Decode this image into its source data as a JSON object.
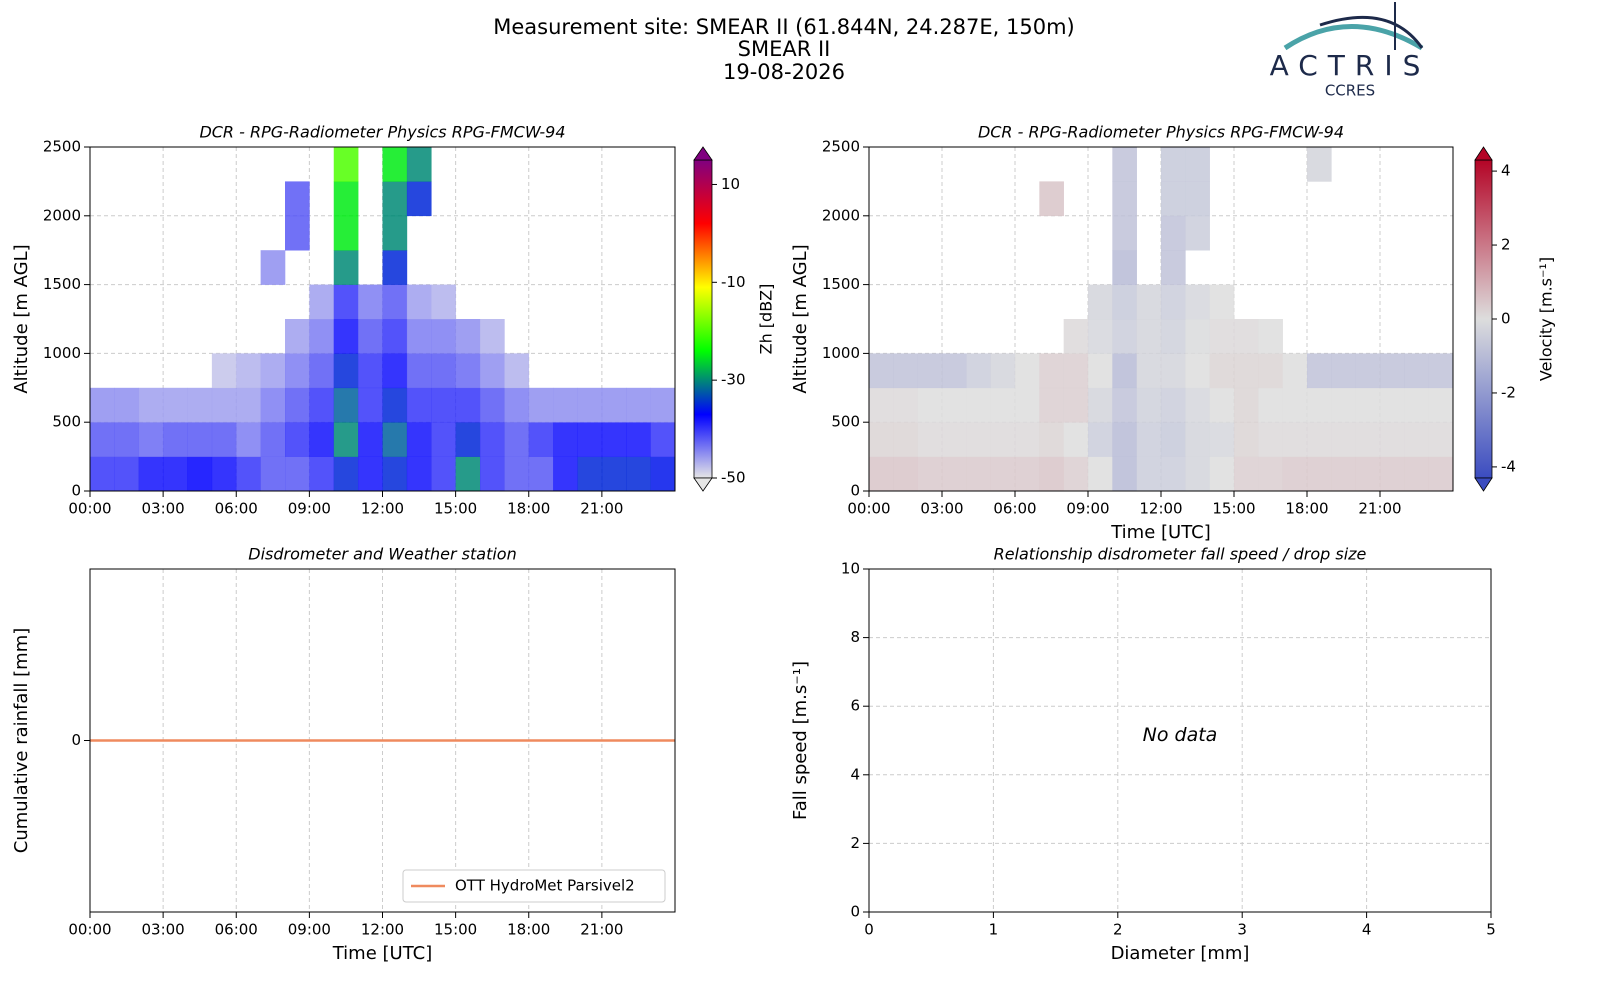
{
  "header": {
    "lines": [
      "Measurement site: SMEAR II (61.844N, 24.287E, 150m)",
      "SMEAR II",
      "19-08-2026"
    ]
  },
  "logo": {
    "name": "ACTRIS",
    "subtitle": "CCRES"
  },
  "chart_data": [
    {
      "type": "heatmap",
      "title": "DCR - RPG-Radiometer Physics RPG-FMCW-94",
      "ylabel": "Altitude [m AGL]",
      "xbins": [
        0,
        1,
        2,
        3,
        4,
        5,
        6,
        7,
        8,
        9,
        10,
        11,
        12,
        13,
        14,
        15,
        16,
        17,
        18,
        19,
        20,
        21,
        22,
        23,
        24
      ],
      "ybins": [
        0,
        250,
        500,
        750,
        1000,
        1250,
        1500,
        1750,
        2000,
        2250,
        2500
      ],
      "z": [
        [
          -40,
          -40,
          -38,
          -38,
          -37,
          -38,
          -40,
          -42,
          -42,
          -40,
          -35,
          -38,
          -35,
          -38,
          -40,
          -30,
          -40,
          -42,
          -42,
          -38,
          -35,
          -35,
          -35,
          -36
        ],
        [
          -42,
          -42,
          -43,
          -42,
          -42,
          -42,
          -44,
          -42,
          -40,
          -38,
          -30,
          -38,
          -32,
          -38,
          -40,
          -35,
          -40,
          -42,
          -40,
          -38,
          -38,
          -38,
          -38,
          -40
        ],
        [
          -45,
          -45,
          -46,
          -46,
          -46,
          -46,
          -46,
          -44,
          -42,
          -40,
          -32,
          -40,
          -35,
          -40,
          -40,
          -40,
          -42,
          -44,
          -45,
          -45,
          -45,
          -45,
          -45,
          -45
        ],
        [
          null,
          null,
          null,
          null,
          null,
          -48,
          -47,
          -46,
          -44,
          -42,
          -35,
          -40,
          -38,
          -42,
          -42,
          -43,
          -45,
          -47,
          null,
          null,
          null,
          null,
          null,
          null
        ],
        [
          null,
          null,
          null,
          null,
          null,
          null,
          null,
          null,
          -46,
          -44,
          -38,
          -42,
          -40,
          -44,
          -44,
          -45,
          -47,
          null,
          null,
          null,
          null,
          null,
          null,
          null
        ],
        [
          null,
          null,
          null,
          null,
          null,
          null,
          null,
          null,
          null,
          -46,
          -40,
          -44,
          -42,
          -46,
          -47,
          null,
          null,
          null,
          null,
          null,
          null,
          null,
          null,
          null
        ],
        [
          null,
          null,
          null,
          null,
          null,
          null,
          null,
          -45,
          null,
          null,
          -30,
          null,
          -35,
          null,
          null,
          null,
          null,
          null,
          null,
          null,
          null,
          null,
          null,
          null
        ],
        [
          null,
          null,
          null,
          null,
          null,
          null,
          null,
          null,
          -42,
          null,
          -25,
          null,
          -30,
          null,
          null,
          null,
          null,
          null,
          null,
          null,
          null,
          null,
          null,
          null
        ],
        [
          null,
          null,
          null,
          null,
          null,
          null,
          null,
          null,
          -42,
          null,
          -25,
          null,
          -30,
          -35,
          null,
          null,
          null,
          null,
          null,
          null,
          null,
          null,
          null,
          null
        ],
        [
          null,
          null,
          null,
          null,
          null,
          null,
          null,
          null,
          null,
          null,
          -20,
          null,
          -25,
          -30,
          null,
          null,
          null,
          null,
          null,
          null,
          null,
          null,
          null,
          null
        ]
      ],
      "xlim": [
        0,
        24
      ],
      "xticks": [
        {
          "value": 0,
          "label": "00:00"
        },
        {
          "value": 3,
          "label": "03:00"
        },
        {
          "value": 6,
          "label": "06:00"
        },
        {
          "value": 9,
          "label": "09:00"
        },
        {
          "value": 12,
          "label": "12:00"
        },
        {
          "value": 15,
          "label": "15:00"
        },
        {
          "value": 18,
          "label": "18:00"
        },
        {
          "value": 21,
          "label": "21:00"
        }
      ],
      "ylim": [
        0,
        2500
      ],
      "yticks": [
        0,
        500,
        1000,
        1500,
        2000,
        2500
      ],
      "grid": true,
      "colorbar": {
        "label": "Zh [dBZ]",
        "lim": [
          -50,
          15
        ],
        "ticks": [
          -50,
          -30,
          -10,
          10
        ],
        "colormap": [
          "#e6e6e6",
          "#0000ff",
          "#00ff00",
          "#ffff00",
          "#ff0000",
          "#800080"
        ]
      }
    },
    {
      "type": "heatmap",
      "title": "DCR - RPG-Radiometer Physics RPG-FMCW-94",
      "ylabel": "Altitude [m AGL]",
      "xlabel": "Time [UTC]",
      "xbins": [
        0,
        1,
        2,
        3,
        4,
        5,
        6,
        7,
        8,
        9,
        10,
        11,
        12,
        13,
        14,
        15,
        16,
        17,
        18,
        19,
        20,
        21,
        22,
        23,
        24
      ],
      "ybins": [
        0,
        250,
        500,
        750,
        1000,
        1250,
        1500,
        1750,
        2000,
        2250,
        2500
      ],
      "z": [
        [
          0.5,
          0.5,
          0.4,
          0.4,
          0.4,
          0.4,
          0.4,
          0.5,
          0.3,
          0,
          -1,
          -0.5,
          -0.5,
          -0.3,
          0,
          0.3,
          0.3,
          0.4,
          0.4,
          0.4,
          0.4,
          0.4,
          0.4,
          0.4
        ],
        [
          0.2,
          0.2,
          0.1,
          0.1,
          0.1,
          0.1,
          0.1,
          0.2,
          0,
          -0.5,
          -1,
          -0.5,
          -0.6,
          -0.3,
          -0.2,
          0.2,
          0.1,
          0.1,
          0.1,
          0.1,
          0.1,
          0.1,
          0.1,
          0.1
        ],
        [
          0.1,
          0.1,
          0,
          0,
          0,
          0,
          0,
          0.3,
          0.3,
          -0.3,
          -0.8,
          -0.4,
          -0.5,
          -0.2,
          0,
          0.2,
          0,
          0,
          0,
          0,
          0,
          0,
          0,
          0
        ],
        [
          -0.8,
          -0.8,
          -0.8,
          -0.8,
          -0.5,
          -0.3,
          0,
          0.3,
          0.3,
          0,
          -1,
          -0.3,
          -0.3,
          0,
          0.2,
          0.2,
          0.2,
          0,
          -0.8,
          -0.8,
          -0.8,
          -0.8,
          -0.8,
          -0.8
        ],
        [
          null,
          null,
          null,
          null,
          null,
          null,
          null,
          null,
          0.1,
          -0.2,
          -0.5,
          -0.3,
          -0.4,
          -0.1,
          0.1,
          0.1,
          0,
          null,
          null,
          null,
          null,
          null,
          null,
          null
        ],
        [
          null,
          null,
          null,
          null,
          null,
          null,
          null,
          null,
          null,
          -0.3,
          -0.6,
          -0.3,
          -0.5,
          -0.2,
          0,
          null,
          null,
          null,
          null,
          null,
          null,
          null,
          null,
          null
        ],
        [
          null,
          null,
          null,
          null,
          null,
          null,
          null,
          null,
          null,
          null,
          -1,
          null,
          -0.8,
          null,
          null,
          null,
          null,
          null,
          null,
          null,
          null,
          null,
          null,
          null
        ],
        [
          null,
          null,
          null,
          null,
          null,
          null,
          null,
          null,
          null,
          null,
          -0.8,
          null,
          -0.8,
          -0.5,
          null,
          null,
          null,
          null,
          null,
          null,
          null,
          null,
          null,
          null
        ],
        [
          null,
          null,
          null,
          null,
          null,
          null,
          null,
          0.5,
          null,
          null,
          -0.8,
          null,
          -0.6,
          -0.6,
          null,
          null,
          null,
          null,
          null,
          null,
          null,
          null,
          null,
          null
        ],
        [
          null,
          null,
          null,
          null,
          null,
          null,
          null,
          null,
          null,
          null,
          -0.8,
          null,
          -0.6,
          -0.6,
          null,
          null,
          null,
          null,
          -0.3,
          null,
          null,
          null,
          null,
          null
        ]
      ],
      "xlim": [
        0,
        24
      ],
      "xticks": [
        {
          "value": 0,
          "label": "00:00"
        },
        {
          "value": 3,
          "label": "03:00"
        },
        {
          "value": 6,
          "label": "06:00"
        },
        {
          "value": 9,
          "label": "09:00"
        },
        {
          "value": 12,
          "label": "12:00"
        },
        {
          "value": 15,
          "label": "15:00"
        },
        {
          "value": 18,
          "label": "18:00"
        },
        {
          "value": 21,
          "label": "21:00"
        }
      ],
      "ylim": [
        0,
        2500
      ],
      "yticks": [
        0,
        500,
        1000,
        1500,
        2000,
        2500
      ],
      "grid": true,
      "colorbar": {
        "label": "Velocity [m.s⁻¹]",
        "lim": [
          -4.3,
          4.3
        ],
        "ticks": [
          -4,
          -2,
          0,
          2,
          4
        ],
        "colormap": [
          "#3b4cc0",
          "#dddddd",
          "#b40426"
        ]
      }
    },
    {
      "type": "line",
      "title": "Disdrometer and Weather station",
      "ylabel": "Cumulative rainfall [mm]",
      "xlabel": "Time [UTC]",
      "x": [
        0,
        24
      ],
      "series": [
        {
          "name": "OTT HydroMet Parsivel2",
          "color": "#ef8a5e",
          "values": [
            0,
            0
          ]
        }
      ],
      "xlim": [
        0,
        24
      ],
      "xticks": [
        {
          "value": 0,
          "label": "00:00"
        },
        {
          "value": 3,
          "label": "03:00"
        },
        {
          "value": 6,
          "label": "06:00"
        },
        {
          "value": 9,
          "label": "09:00"
        },
        {
          "value": 12,
          "label": "12:00"
        },
        {
          "value": 15,
          "label": "15:00"
        },
        {
          "value": 18,
          "label": "18:00"
        },
        {
          "value": 21,
          "label": "21:00"
        }
      ],
      "ylim": [
        -0.055,
        0.055
      ],
      "yticks": [
        0
      ],
      "grid": true,
      "legend": "lower-right"
    },
    {
      "type": "scatter",
      "title": "Relationship disdrometer fall speed / drop size",
      "ylabel": "Fall speed [m.s⁻¹]",
      "xlabel": "Diameter [mm]",
      "annotation": "No data",
      "xlim": [
        0,
        5
      ],
      "xticks": [
        0,
        1,
        2,
        3,
        4,
        5
      ],
      "ylim": [
        0,
        10
      ],
      "yticks": [
        0,
        2,
        4,
        6,
        8,
        10
      ],
      "grid": true
    }
  ]
}
